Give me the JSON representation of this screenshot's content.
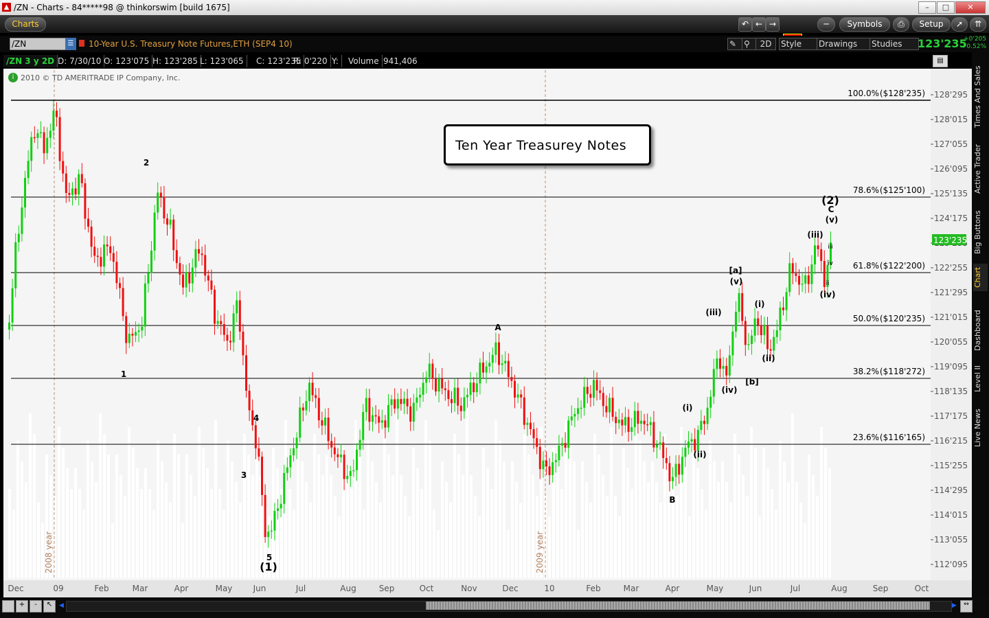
{
  "window": {
    "title": "/ZN - Charts - 84*****98 @ thinkorswim [build 1675]",
    "min_label": "–",
    "max_label": "□",
    "close_label": "✕"
  },
  "toolbar": {
    "charts_label": "Charts",
    "symbols_label": "Symbols",
    "setup_label": "Setup"
  },
  "symbol": {
    "value": "/ZN",
    "description": "10-Year U.S. Treasury Note Futures,ETH (SEP4 10)",
    "timeframe": "2D",
    "style_label": "Style",
    "drawings_label": "Drawings",
    "studies_label": "Studies",
    "last": "123'235",
    "change": "+0'205",
    "change_pct": "+0.52%"
  },
  "info": {
    "chart_label": "/ZN 3 y 2D",
    "date": "D: 7/30/10",
    "open": "O: 123'075",
    "high": "H: 123'285",
    "low": "L: 123'065",
    "close": "C: 123'235",
    "range": "R: 0'220",
    "y": "Y:",
    "volume_label": "Volume",
    "volume": "941,406"
  },
  "copyright": "2010 © TD AMERITRADE IP Company, Inc.",
  "annotation_box": "Ten  Year  Treasurey  Notes",
  "chart_data": {
    "type": "candlestick",
    "price_ticks": [
      "128'295",
      "128'015",
      "127'055",
      "126'095",
      "125'135",
      "124'175",
      "123'235",
      "122'255",
      "121'295",
      "121'015",
      "120'055",
      "119'095",
      "118'135",
      "117'175",
      "116'215",
      "115'255",
      "114'295",
      "114'015",
      "113'055",
      "112'095"
    ],
    "last_price_tag": "123'235",
    "date_ticks": [
      "Dec",
      "09",
      "Feb",
      "Mar",
      "Apr",
      "May",
      "Jun",
      "Jul",
      "Aug",
      "Sep",
      "Oct",
      "Nov",
      "Dec",
      "10",
      "Feb",
      "Mar",
      "Apr",
      "May",
      "Jun",
      "Jul",
      "Aug",
      "Sep",
      "Oct"
    ],
    "year_markers": [
      "2008 year",
      "2009 year"
    ],
    "fib_levels": [
      {
        "label": "100.0%",
        "value": "($128'235)"
      },
      {
        "label": "78.6%",
        "value": "($125'100)"
      },
      {
        "label": "61.8%",
        "value": "($122'200)"
      },
      {
        "label": "50.0%",
        "value": "($120'235)"
      },
      {
        "label": "38.2%",
        "value": "($118'272)"
      },
      {
        "label": "23.6%",
        "value": "($116'165)"
      }
    ],
    "wave_labels": [
      "2",
      "1",
      "4",
      "3",
      "5",
      "(1)",
      "A",
      "B",
      "(i)",
      "(ii)",
      "(iii)",
      "(iv)",
      "[a]",
      "(v)",
      "[b]",
      "(i)",
      "(ii)",
      "(iii)",
      "(iv)",
      "(v)",
      "C",
      "(2)",
      "ii",
      "iv",
      "iii"
    ],
    "price_range": [
      111.9,
      128.9
    ],
    "grid": false
  },
  "right_tabs": [
    "Times And Sales",
    "Active Trader",
    "Big Buttons",
    "Chart",
    "Dashboard",
    "Level II",
    "Live News"
  ]
}
